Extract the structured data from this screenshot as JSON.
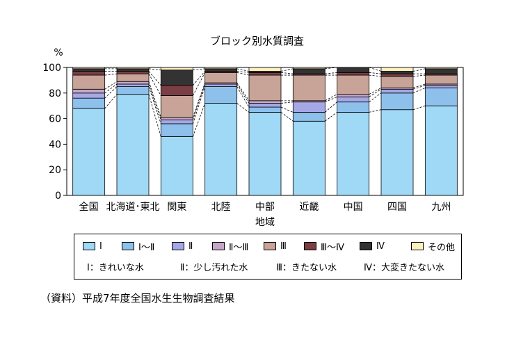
{
  "chart_data": {
    "type": "bar",
    "stacked": true,
    "title": "ブロック別水質調査",
    "ylabel": "%",
    "xlabel": "地域",
    "ylim": [
      0,
      100
    ],
    "yticks": [
      0,
      20,
      40,
      60,
      80,
      100
    ],
    "categories": [
      "全国",
      "北海道･東北",
      "関東",
      "北陸",
      "中部",
      "近畿",
      "中国",
      "四国",
      "九州"
    ],
    "series": [
      {
        "name": "Ⅰ",
        "color": "#9fd9f6",
        "values": [
          68,
          79,
          46,
          72,
          65,
          58,
          65,
          67,
          70
        ]
      },
      {
        "name": "Ⅰ～Ⅱ",
        "color": "#8ec0ec",
        "values": [
          8,
          6,
          10,
          13,
          4,
          7,
          8,
          13,
          14
        ]
      },
      {
        "name": "Ⅱ",
        "color": "#a6a8e6",
        "values": [
          4,
          2,
          3,
          2,
          3,
          8,
          4,
          3,
          2
        ]
      },
      {
        "name": "Ⅱ～Ⅲ",
        "color": "#c5a8c7",
        "values": [
          3,
          2,
          2,
          1,
          2,
          1,
          2,
          1,
          1
        ]
      },
      {
        "name": "Ⅲ",
        "color": "#c8a398",
        "values": [
          11,
          6,
          17,
          8,
          20,
          20,
          15,
          9,
          7
        ]
      },
      {
        "name": "Ⅲ～Ⅳ",
        "color": "#7b3e45",
        "values": [
          3,
          2,
          8,
          1,
          2,
          1,
          2,
          2,
          1
        ]
      },
      {
        "name": "Ⅳ",
        "color": "#333333",
        "values": [
          2,
          2,
          12,
          2,
          1,
          4,
          4,
          2,
          4
        ]
      },
      {
        "name": "その他",
        "color": "#fdf0c0",
        "values": [
          1,
          1,
          2,
          1,
          3,
          1,
          0,
          3,
          1
        ]
      }
    ],
    "notes": [
      "Ⅰ：きれいな水",
      "Ⅱ：少し汚れた水",
      "Ⅲ：きたない水",
      "Ⅳ：大変きたない水"
    ],
    "legend_position": "bottom",
    "grid": false
  },
  "source": "（資料）平成7年度全国水生生物調査結果"
}
